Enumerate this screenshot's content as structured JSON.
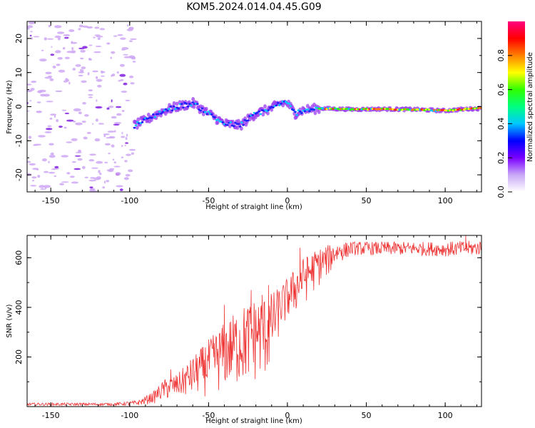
{
  "title": "KOM5.2024.014.04.45.G09",
  "chart_data": [
    {
      "type": "heatmap",
      "xlabel": "Height of straight line (km)",
      "ylabel": "Frequency (Hz)",
      "xlim": [
        -165,
        123
      ],
      "ylim": [
        -25,
        25
      ],
      "xticks": [
        -150,
        -100,
        -50,
        0,
        50,
        100
      ],
      "yticks": [
        -20,
        -10,
        0,
        10,
        20
      ],
      "colorbar": {
        "label": "Normalized spectral amplitude",
        "range": [
          0,
          1
        ],
        "ticks": [
          "0.0",
          "0.2",
          "0.4",
          "0.6",
          "0.8"
        ],
        "colors": [
          "#ffffff",
          "#c9a8f7",
          "#7a00ff",
          "#0000ff",
          "#00c8ff",
          "#00ff80",
          "#30ff00",
          "#ffff00",
          "#ff8000",
          "#ff0000",
          "#ff0080"
        ]
      },
      "ridge": {
        "x": [
          -97,
          -90,
          -80,
          -70,
          -60,
          -50,
          -40,
          -30,
          -20,
          -10,
          -5,
          0,
          5,
          10,
          20,
          40,
          60,
          80,
          100,
          110,
          123
        ],
        "freq": [
          -5.5,
          -4,
          -1.5,
          0,
          1,
          -2,
          -5,
          -5.5,
          -2,
          -0.5,
          1,
          1,
          -2,
          -1,
          -0.5,
          -0.8,
          -0.7,
          -0.8,
          -1.2,
          -0.8,
          -0.5
        ]
      },
      "noise_region_x": [
        -165,
        -97
      ]
    },
    {
      "type": "line",
      "xlabel": "Height of straight line (km)",
      "ylabel": "SNR (v/v)",
      "xlim": [
        -165,
        123
      ],
      "ylim": [
        0,
        690
      ],
      "xticks": [
        -150,
        -100,
        -50,
        0,
        50,
        100
      ],
      "yticks": [
        200,
        400,
        600
      ],
      "color": "#ee3333",
      "envelope": {
        "x": [
          -165,
          -110,
          -95,
          -85,
          -78,
          -70,
          -60,
          -50,
          -40,
          -30,
          -20,
          -12,
          -8,
          -5,
          0,
          5,
          10,
          15,
          20,
          25,
          30,
          40,
          60,
          80,
          100,
          123
        ],
        "low": [
          4,
          4,
          5,
          10,
          20,
          25,
          30,
          40,
          50,
          60,
          80,
          100,
          200,
          280,
          330,
          360,
          400,
          440,
          480,
          510,
          560,
          610,
          610,
          610,
          605,
          610
        ],
        "high": [
          15,
          15,
          25,
          60,
          110,
          130,
          200,
          270,
          340,
          400,
          440,
          450,
          470,
          480,
          520,
          560,
          600,
          620,
          640,
          650,
          660,
          665,
          665,
          665,
          665,
          670
        ]
      },
      "spikes": [
        {
          "x": -74,
          "y": 150
        },
        {
          "x": -40,
          "y": 410
        },
        {
          "x": -23,
          "y": 470
        },
        {
          "x": -16,
          "y": 450
        },
        {
          "x": -12,
          "y": 490
        },
        {
          "x": 8,
          "y": 640
        },
        {
          "x": 113,
          "y": 690
        }
      ]
    }
  ]
}
